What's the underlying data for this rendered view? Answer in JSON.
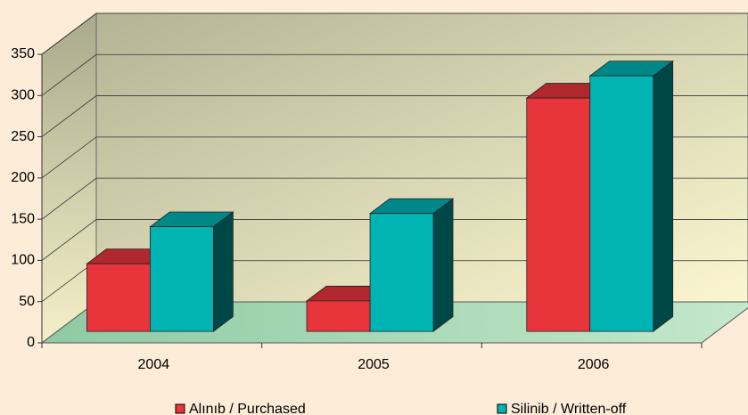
{
  "chart_data": {
    "type": "bar3d",
    "categories": [
      "2004",
      "2005",
      "2006"
    ],
    "series": [
      {
        "name": "Alınıb / Purchased",
        "color": "#e8353c",
        "values": [
          82,
          37,
          283
        ]
      },
      {
        "name": "Silinib / Written-off",
        "color": "#00b4b4",
        "values": [
          127,
          143,
          310
        ]
      }
    ],
    "ylim": [
      0,
      350
    ],
    "yticks": [
      0,
      50,
      100,
      150,
      200,
      250,
      300,
      350
    ],
    "grid": true,
    "legend": "bottom"
  }
}
